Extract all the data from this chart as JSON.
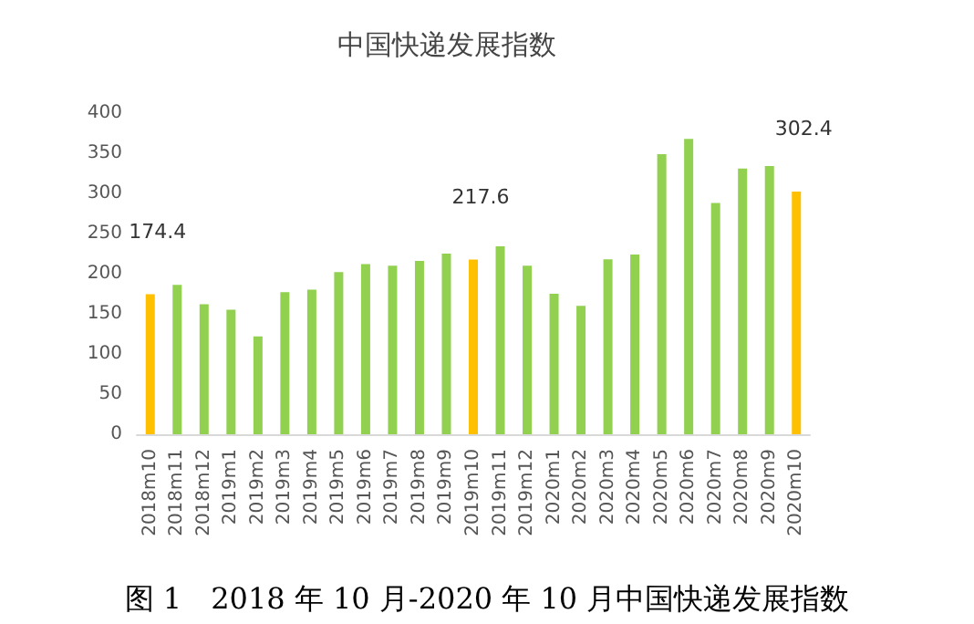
{
  "chart_data": {
    "type": "bar",
    "title": "中国快递发展指数",
    "categories": [
      "2018m10",
      "2018m11",
      "2018m12",
      "2019m1",
      "2019m2",
      "2019m3",
      "2019m4",
      "2019m5",
      "2019m6",
      "2019m7",
      "2019m8",
      "2019m9",
      "2019m10",
      "2019m11",
      "2019m12",
      "2020m1",
      "2020m2",
      "2020m3",
      "2020m4",
      "2020m5",
      "2020m6",
      "2020m7",
      "2020m8",
      "2020m9",
      "2020m10"
    ],
    "values": [
      174.4,
      186,
      162,
      155,
      122,
      177,
      180,
      202,
      212,
      210,
      216,
      225,
      217.6,
      234,
      210,
      175,
      160,
      218,
      224,
      349,
      368,
      288,
      331,
      334,
      302.4
    ],
    "colors": [
      "#ffc000",
      "#92d050",
      "#92d050",
      "#92d050",
      "#92d050",
      "#92d050",
      "#92d050",
      "#92d050",
      "#92d050",
      "#92d050",
      "#92d050",
      "#92d050",
      "#ffc000",
      "#92d050",
      "#92d050",
      "#92d050",
      "#92d050",
      "#92d050",
      "#92d050",
      "#92d050",
      "#92d050",
      "#92d050",
      "#92d050",
      "#92d050",
      "#ffc000"
    ],
    "value_labels": [
      "174.4",
      null,
      null,
      null,
      null,
      null,
      null,
      null,
      null,
      null,
      null,
      null,
      "217.6",
      null,
      null,
      null,
      null,
      null,
      null,
      null,
      null,
      null,
      null,
      null,
      "302.4"
    ],
    "ylim": [
      0,
      400
    ],
    "yticks": [
      0,
      50,
      100,
      150,
      200,
      250,
      300,
      350,
      400
    ],
    "grid": false,
    "annotations": [
      "图 1　2018 年 10 月-2020 年 10 月中国快递发展指数"
    ]
  }
}
